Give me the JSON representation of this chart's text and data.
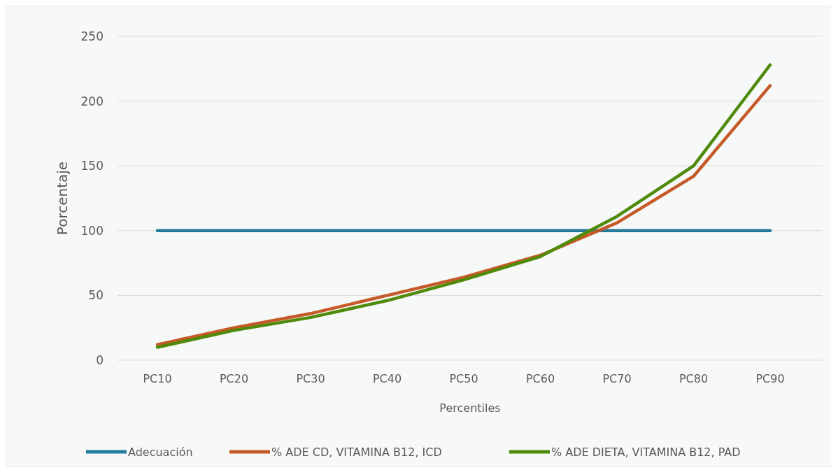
{
  "chart_data": {
    "type": "line",
    "xlabel": "Percentiles",
    "ylabel": "Porcentaje",
    "categories": [
      "PC10",
      "PC20",
      "PC30",
      "PC40",
      "PC50",
      "PC60",
      "PC70",
      "PC80",
      "PC90"
    ],
    "series": [
      {
        "name": "Adecuación",
        "color": "#237a9b",
        "values": [
          100,
          100,
          100,
          100,
          100,
          100,
          100,
          100,
          100
        ]
      },
      {
        "name": "% ADE CD, VITAMINA B12, ICD",
        "color": "#c55a28",
        "values": [
          12,
          25,
          36,
          50,
          64,
          81,
          106,
          142,
          212
        ]
      },
      {
        "name": "% ADE DIETA, VITAMINA B12, PAD",
        "color": "#4f8a0b",
        "values": [
          10,
          23,
          33,
          46,
          62,
          80,
          111,
          150,
          228
        ]
      }
    ],
    "ylim": [
      0,
      250
    ],
    "yticks": [
      0,
      50,
      100,
      150,
      200,
      250
    ],
    "grid": "y",
    "legend": "bottom",
    "marker": "none",
    "line_style": "solid"
  }
}
